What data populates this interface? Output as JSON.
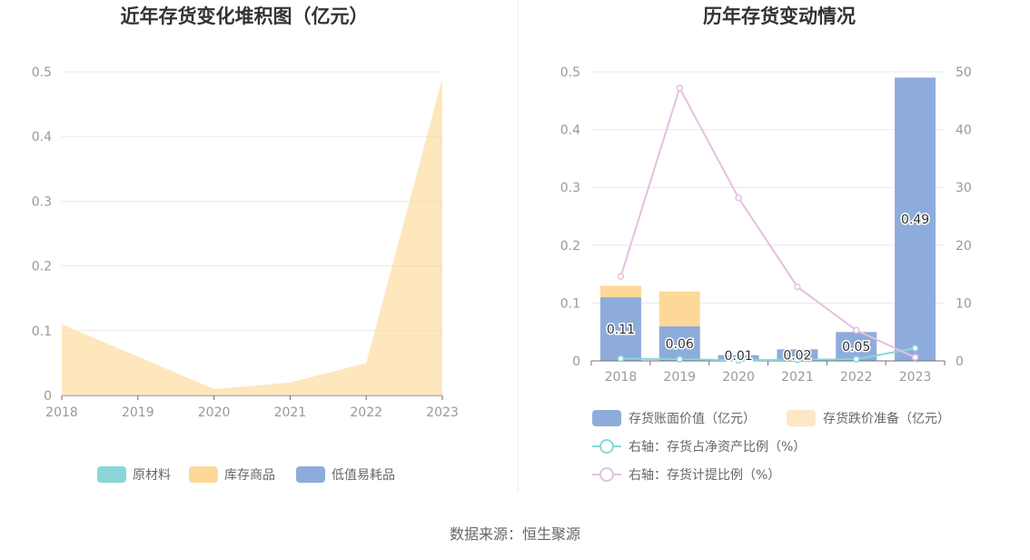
{
  "chart_data": [
    {
      "type": "area",
      "title": "近年存货变化堆积图（亿元）",
      "categories": [
        "2018",
        "2019",
        "2020",
        "2021",
        "2022",
        "2023"
      ],
      "ylim": [
        0,
        0.5
      ],
      "yticks": [
        "0",
        "0.1",
        "0.2",
        "0.3",
        "0.4",
        "0.5"
      ],
      "grid": true,
      "legend_position": "bottom",
      "series": [
        {
          "name": "原材料",
          "color": "#8ad6d8",
          "values": [
            0,
            0,
            0,
            0,
            0,
            0
          ]
        },
        {
          "name": "库存商品",
          "color": "#fdd899",
          "values": [
            0.11,
            0.06,
            0.01,
            0.02,
            0.05,
            0.49
          ]
        },
        {
          "name": "低值易耗品",
          "color": "#8eacdb",
          "values": [
            0,
            0,
            0,
            0,
            0,
            0
          ]
        }
      ]
    },
    {
      "type": "bar",
      "title": "历年存货变动情况",
      "categories": [
        "2018",
        "2019",
        "2020",
        "2021",
        "2022",
        "2023"
      ],
      "ylim": [
        0,
        0.5
      ],
      "yticks": [
        "0",
        "0.1",
        "0.2",
        "0.3",
        "0.4",
        "0.5"
      ],
      "y2lim": [
        0,
        50
      ],
      "y2ticks": [
        "0",
        "10",
        "20",
        "30",
        "40",
        "50"
      ],
      "grid": true,
      "legend_position": "bottom",
      "series": [
        {
          "name": "存货账面价值（亿元）",
          "type": "bar",
          "stack": true,
          "color": "#8eacdb",
          "values": [
            0.11,
            0.06,
            0.01,
            0.02,
            0.05,
            0.49
          ],
          "labels": [
            "0.11",
            "0.06",
            "0.01",
            "0.02",
            "0.05",
            "0.49"
          ]
        },
        {
          "name": "存货跌价准备（亿元）",
          "type": "bar",
          "stack": true,
          "color": "#fdd899",
          "legend_color": "#fde7c6",
          "values": [
            0.02,
            0.06,
            0,
            0,
            0,
            0
          ]
        },
        {
          "name": "右轴：存货占净资产比例（%）",
          "type": "line",
          "axis": "right",
          "color": "#8ad6d8",
          "values": [
            0.4,
            0.3,
            0.1,
            0.2,
            0.3,
            2.2
          ]
        },
        {
          "name": "右轴：存货计提比例（%）",
          "type": "line",
          "axis": "right",
          "color": "#e6bfe0",
          "values": [
            14.6,
            47.2,
            28.2,
            12.8,
            5.3,
            0.6
          ]
        }
      ]
    }
  ],
  "source": "数据来源：恒生聚源"
}
